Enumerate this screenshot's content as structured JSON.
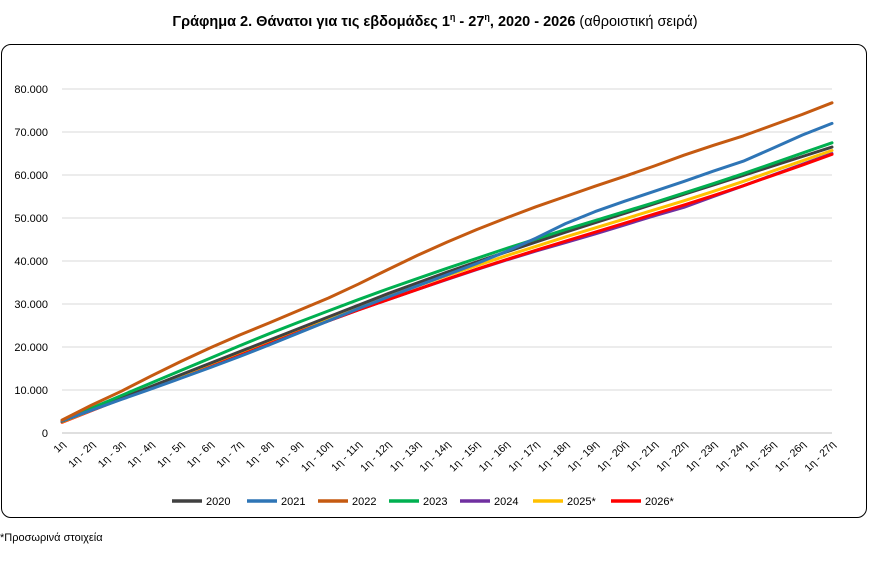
{
  "title": {
    "bold_prefix": "Γράφημα 2. Θάνατοι για τις εβδομάδες 1",
    "sup1": "η",
    "bold_mid": " - 27",
    "sup2": "η",
    "bold_suffix": ", 2020 - 2026",
    "normal_suffix": " (αθροιστική σειρά)"
  },
  "footnote": "*Προσωρινά στοιχεία",
  "chart_data": {
    "type": "line",
    "title": "Γράφημα 2. Θάνατοι για τις εβδομάδες 1η - 27η, 2020 - 2026 (αθροιστική σειρά)",
    "xlabel": "",
    "ylabel": "",
    "ylim": [
      0,
      80000
    ],
    "yticks": [
      0,
      10000,
      20000,
      30000,
      40000,
      50000,
      60000,
      70000,
      80000
    ],
    "ytick_labels": [
      "0",
      "10.000",
      "20.000",
      "30.000",
      "40.000",
      "50.000",
      "60.000",
      "70.000",
      "80.000"
    ],
    "grid": true,
    "legend_position": "bottom",
    "categories": [
      "1η",
      "1η - 2η",
      "1η - 3η",
      "1η - 4η",
      "1η - 5η",
      "1η - 6η",
      "1η - 7η",
      "1η - 8η",
      "1η - 9η",
      "1η - 10η",
      "1η - 11η",
      "1η - 12η",
      "1η - 13η",
      "1η - 14η",
      "1η - 15η",
      "1η - 16η",
      "1η - 17η",
      "1η - 18η",
      "1η - 19η",
      "1η - 20ή",
      "1η - 21η",
      "1η - 22η",
      "1η - 23η",
      "1η - 24η",
      "1η - 25η",
      "1η - 26η",
      "1η - 27η"
    ],
    "series": [
      {
        "name": "2020",
        "color": "#404040",
        "values": [
          2700,
          5400,
          8100,
          10800,
          13500,
          16200,
          18900,
          21600,
          24300,
          27000,
          29700,
          32400,
          34900,
          37400,
          39800,
          42100,
          44400,
          46700,
          48900,
          51100,
          53300,
          55500,
          57700,
          59900,
          62100,
          64300,
          66500
        ]
      },
      {
        "name": "2021",
        "color": "#2E75B6",
        "values": [
          2800,
          5300,
          7800,
          10200,
          12700,
          15200,
          17800,
          20500,
          23300,
          26100,
          28900,
          31600,
          34200,
          36800,
          39400,
          42200,
          45300,
          48700,
          51500,
          53900,
          56200,
          58500,
          60900,
          63200,
          66200,
          69300,
          72000
        ]
      },
      {
        "name": "2022",
        "color": "#C55A11",
        "values": [
          3000,
          6500,
          9700,
          13200,
          16600,
          19800,
          22800,
          25600,
          28500,
          31400,
          34600,
          38000,
          41300,
          44400,
          47300,
          50000,
          52600,
          55000,
          57400,
          59700,
          62100,
          64600,
          66900,
          69100,
          71600,
          74100,
          76800
        ]
      },
      {
        "name": "2023",
        "color": "#00B050",
        "values": [
          2900,
          5800,
          8700,
          11600,
          14500,
          17400,
          20300,
          23100,
          25800,
          28400,
          31000,
          33500,
          35900,
          38300,
          40600,
          42900,
          45100,
          47300,
          49400,
          51500,
          53600,
          55800,
          58000,
          60300,
          62700,
          65100,
          67500
        ]
      },
      {
        "name": "2024",
        "color": "#7030A0",
        "values": [
          2600,
          5300,
          8000,
          10600,
          13200,
          15800,
          18400,
          21000,
          23600,
          26100,
          28600,
          31000,
          33400,
          35700,
          38000,
          40200,
          42300,
          44300,
          46300,
          48400,
          50500,
          52500,
          55000,
          57500,
          60000,
          62500,
          65000
        ]
      },
      {
        "name": "2025*",
        "color": "#FFC000",
        "values": [
          2600,
          5300,
          8000,
          10700,
          13400,
          16100,
          18800,
          21500,
          24200,
          26800,
          29300,
          31800,
          34200,
          36600,
          38900,
          41200,
          43400,
          45600,
          47700,
          49800,
          51900,
          54000,
          56200,
          58500,
          60900,
          63300,
          65700
        ]
      },
      {
        "name": "2026*",
        "color": "#FF0000",
        "values": [
          2500,
          5200,
          7900,
          10500,
          13100,
          15800,
          18400,
          21000,
          23600,
          26100,
          28600,
          31000,
          33400,
          35800,
          38100,
          40300,
          42500,
          44600,
          46700,
          48800,
          50900,
          53000,
          55200,
          57500,
          59900,
          62300,
          64800
        ]
      }
    ]
  }
}
